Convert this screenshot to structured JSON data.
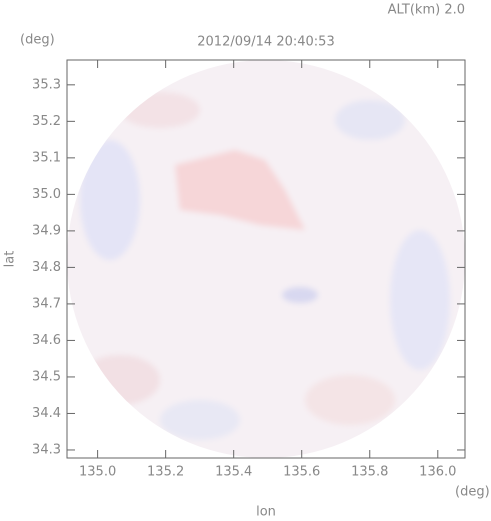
{
  "chart_data": {
    "type": "image",
    "title": "2012/09/14 20:40:53",
    "subtitle": "ALT(km) 2.0",
    "xlabel": "lon",
    "ylabel": "lat",
    "xunit": "(deg)",
    "yunit": "(deg)",
    "xlim": [
      134.91,
      136.08
    ],
    "ylim": [
      34.278,
      35.368
    ],
    "xticks": [
      {
        "value": 135,
        "label": "135.0"
      },
      135.2,
      135.4,
      135.6,
      135.8,
      {
        "value": 136,
        "label": "136.0"
      }
    ],
    "yticks": [
      34.3,
      34.4,
      34.5,
      34.6,
      34.7,
      34.8,
      34.9,
      {
        "value": 35,
        "label": "35.0"
      },
      35.1,
      35.2,
      35.3
    ]
  }
}
